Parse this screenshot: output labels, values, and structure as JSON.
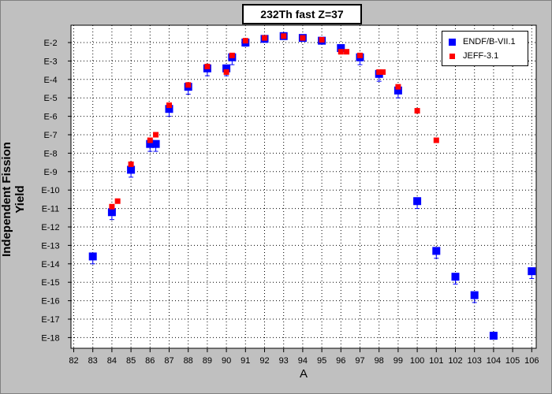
{
  "chart_data": {
    "type": "scatter",
    "title": "232Th fast Z=37",
    "xlabel": "A",
    "ylabel": "Independent Fission Yield",
    "xlim": [
      82,
      107
    ],
    "ylim": [
      -18.5,
      -1.6
    ],
    "yscale": "log",
    "grid": true,
    "legend_position": "top-right",
    "x_ticks": [
      82,
      83,
      84,
      85,
      86,
      87,
      88,
      89,
      90,
      91,
      92,
      93,
      94,
      95,
      96,
      97,
      98,
      99,
      100,
      101,
      102,
      103,
      104,
      105,
      106
    ],
    "y_ticks": [
      {
        "v": -2,
        "label": "E-2"
      },
      {
        "v": -3,
        "label": "E-3"
      },
      {
        "v": -4,
        "label": "E-4"
      },
      {
        "v": -5,
        "label": "E-5"
      },
      {
        "v": -6,
        "label": "E-6"
      },
      {
        "v": -7,
        "label": "E-7"
      },
      {
        "v": -8,
        "label": "E-8"
      },
      {
        "v": -9,
        "label": "E-9"
      },
      {
        "v": -10,
        "label": "E-10"
      },
      {
        "v": -11,
        "label": "E-11"
      },
      {
        "v": -12,
        "label": "E-12"
      },
      {
        "v": -13,
        "label": "E-13"
      },
      {
        "v": -14,
        "label": "E-14"
      },
      {
        "v": -15,
        "label": "E-15"
      },
      {
        "v": -16,
        "label": "E-16"
      },
      {
        "v": -17,
        "label": "E-17"
      },
      {
        "v": -18,
        "label": "E-18"
      }
    ],
    "series": [
      {
        "name": "ENDF/B-VII.1",
        "color": "#0000ff",
        "marker": "square-large",
        "points": [
          {
            "x": 83,
            "y": -13.6,
            "err": 0.4
          },
          {
            "x": 84,
            "y": -11.2,
            "err": 0.4
          },
          {
            "x": 85,
            "y": -8.9,
            "err": 0.4
          },
          {
            "x": 86,
            "y": -7.5,
            "err": 0.4
          },
          {
            "x": 86.3,
            "y": -7.5,
            "err": 0.4
          },
          {
            "x": 87,
            "y": -5.6,
            "err": 0.4
          },
          {
            "x": 88,
            "y": -4.4,
            "err": 0.4
          },
          {
            "x": 89,
            "y": -3.4,
            "err": 0.4
          },
          {
            "x": 90,
            "y": -3.4,
            "err": 0.4
          },
          {
            "x": 90.3,
            "y": -2.8,
            "err": 0.4
          },
          {
            "x": 91,
            "y": -2.0,
            "err": 0.2
          },
          {
            "x": 92,
            "y": -1.8,
            "err": 0.1
          },
          {
            "x": 93,
            "y": -1.65,
            "err": 0.1
          },
          {
            "x": 94,
            "y": -1.75,
            "err": 0.1
          },
          {
            "x": 95,
            "y": -1.9,
            "err": 0.1
          },
          {
            "x": 96,
            "y": -2.3,
            "err": 0.2
          },
          {
            "x": 97,
            "y": -2.8,
            "err": 0.4
          },
          {
            "x": 98,
            "y": -3.7,
            "err": 0.4
          },
          {
            "x": 99,
            "y": -4.6,
            "err": 0.4
          },
          {
            "x": 100,
            "y": -10.6,
            "err": 0.4
          },
          {
            "x": 101,
            "y": -13.3,
            "err": 0.4
          },
          {
            "x": 102,
            "y": -14.7,
            "err": 0.4
          },
          {
            "x": 103,
            "y": -15.7,
            "err": 0.4
          },
          {
            "x": 104,
            "y": -17.9,
            "err": 0.0
          },
          {
            "x": 106,
            "y": -14.4,
            "err": 0.4
          }
        ]
      },
      {
        "name": "JEFF-3.1",
        "color": "#ff0000",
        "marker": "square-small",
        "points": [
          {
            "x": 84,
            "y": -10.9
          },
          {
            "x": 84.3,
            "y": -10.6
          },
          {
            "x": 85,
            "y": -8.6
          },
          {
            "x": 86,
            "y": -7.3
          },
          {
            "x": 86.3,
            "y": -7.0
          },
          {
            "x": 87,
            "y": -5.4
          },
          {
            "x": 88,
            "y": -4.3
          },
          {
            "x": 89,
            "y": -3.3
          },
          {
            "x": 90,
            "y": -3.6
          },
          {
            "x": 90.3,
            "y": -2.7
          },
          {
            "x": 91,
            "y": -1.9
          },
          {
            "x": 92,
            "y": -1.75
          },
          {
            "x": 93,
            "y": -1.65
          },
          {
            "x": 94,
            "y": -1.75
          },
          {
            "x": 95,
            "y": -1.85
          },
          {
            "x": 96,
            "y": -2.5
          },
          {
            "x": 96.3,
            "y": -2.5
          },
          {
            "x": 97,
            "y": -2.7
          },
          {
            "x": 98,
            "y": -3.6
          },
          {
            "x": 98.2,
            "y": -3.6
          },
          {
            "x": 99,
            "y": -4.4
          },
          {
            "x": 100,
            "y": -5.7
          },
          {
            "x": 101,
            "y": -7.3
          }
        ]
      }
    ]
  }
}
